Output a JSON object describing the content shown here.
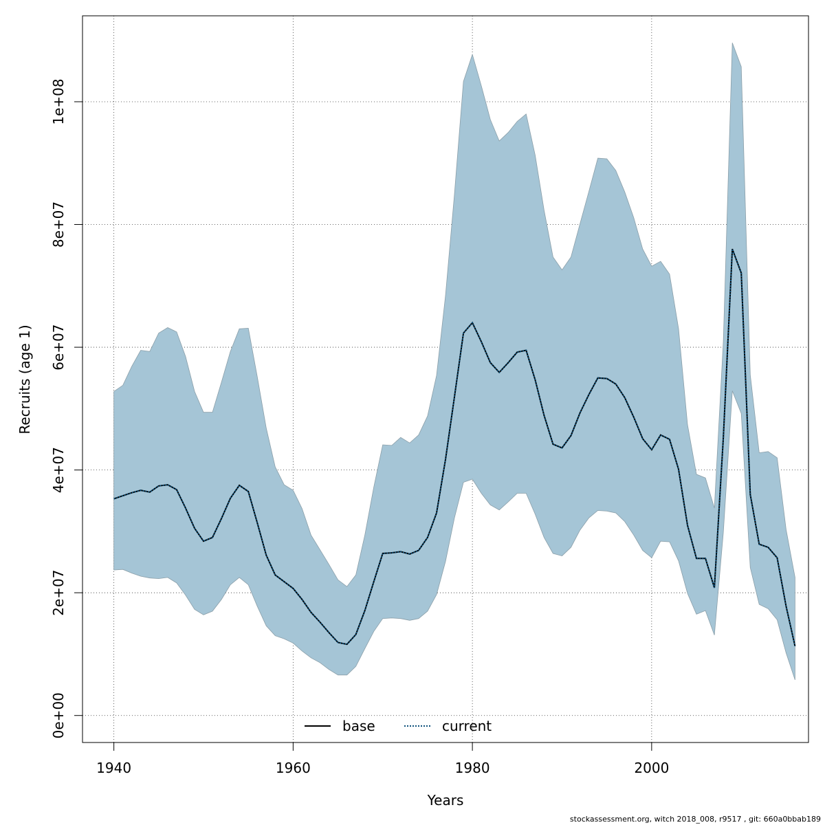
{
  "chart_data": {
    "type": "area",
    "title": "",
    "xlabel": "Years",
    "ylabel": "Recruits (age 1)",
    "xlim": [
      1936.5,
      2017.5
    ],
    "ylim": [
      -4400000,
      114000000
    ],
    "x_ticks": [
      1940,
      1960,
      1980,
      2000
    ],
    "x_tick_labels": [
      "1940",
      "1960",
      "1980",
      "2000"
    ],
    "y_ticks": [
      0,
      20000000,
      40000000,
      60000000,
      80000000,
      100000000
    ],
    "y_tick_labels": [
      "0e+00",
      "2e+07",
      "4e+07",
      "6e+07",
      "8e+07",
      "1e+08"
    ],
    "grid": true,
    "legend": {
      "placement": "bottom",
      "entries": [
        {
          "label": "base",
          "style": "solid",
          "color": "#000000"
        },
        {
          "label": "current",
          "style": "dotted",
          "color": "#0b4f7a"
        }
      ]
    },
    "colors": {
      "band_fill": "#a5c5d6",
      "band_edge": "#8a9ea8",
      "base_line": "#000000",
      "current_line": "#0b4f7a"
    },
    "years": [
      1940,
      1941,
      1942,
      1943,
      1944,
      1945,
      1946,
      1947,
      1948,
      1949,
      1950,
      1951,
      1952,
      1953,
      1954,
      1955,
      1956,
      1957,
      1958,
      1959,
      1960,
      1961,
      1962,
      1963,
      1964,
      1965,
      1966,
      1967,
      1968,
      1969,
      1970,
      1971,
      1972,
      1973,
      1974,
      1975,
      1976,
      1977,
      1978,
      1979,
      1980,
      1981,
      1982,
      1983,
      1984,
      1985,
      1986,
      1987,
      1988,
      1989,
      1990,
      1991,
      1992,
      1993,
      1994,
      1995,
      1996,
      1997,
      1998,
      1999,
      2000,
      2001,
      2002,
      2003,
      2004,
      2005,
      2006,
      2007,
      2008,
      2009,
      2010,
      2011,
      2012,
      2013,
      2014,
      2015,
      2016
    ],
    "series": [
      {
        "name": "base",
        "values": [
          35300000,
          35800000,
          36300000,
          36700000,
          36400000,
          37400000,
          37600000,
          36800000,
          33800000,
          30500000,
          28400000,
          29000000,
          32100000,
          35400000,
          37500000,
          36500000,
          31400000,
          26100000,
          22900000,
          21800000,
          20700000,
          18900000,
          16800000,
          15200000,
          13500000,
          11900000,
          11600000,
          13200000,
          17100000,
          21800000,
          26400000,
          26500000,
          26700000,
          26300000,
          26900000,
          29000000,
          33000000,
          41700000,
          51900000,
          62300000,
          64000000,
          60900000,
          57500000,
          55900000,
          57500000,
          59200000,
          59500000,
          54700000,
          48900000,
          44200000,
          43600000,
          45600000,
          49300000,
          52300000,
          55000000,
          54900000,
          54000000,
          51800000,
          48600000,
          45100000,
          43300000,
          45700000,
          45000000,
          40100000,
          31000000,
          25600000,
          25600000,
          20800000,
          45200000,
          76000000,
          72100000,
          36000000,
          27900000,
          27400000,
          25700000,
          17800000,
          11300000
        ]
      },
      {
        "name": "current",
        "values": [
          35300000,
          35800000,
          36300000,
          36700000,
          36400000,
          37400000,
          37600000,
          36800000,
          33800000,
          30500000,
          28400000,
          29000000,
          32100000,
          35400000,
          37500000,
          36500000,
          31400000,
          26100000,
          22900000,
          21800000,
          20700000,
          18900000,
          16800000,
          15200000,
          13500000,
          11900000,
          11600000,
          13200000,
          17100000,
          21800000,
          26400000,
          26500000,
          26700000,
          26300000,
          26900000,
          29000000,
          33000000,
          41700000,
          51900000,
          62300000,
          64000000,
          60900000,
          57500000,
          55900000,
          57500000,
          59200000,
          59500000,
          54700000,
          48900000,
          44200000,
          43600000,
          45600000,
          49300000,
          52300000,
          55000000,
          54900000,
          54000000,
          51800000,
          48600000,
          45100000,
          43300000,
          45700000,
          45000000,
          40100000,
          31000000,
          25600000,
          25600000,
          20800000,
          45200000,
          76000000,
          72100000,
          36000000,
          27900000,
          27400000,
          25700000,
          17800000,
          11300000
        ]
      }
    ],
    "band": {
      "upper": [
        52800000,
        53800000,
        56900000,
        59500000,
        59300000,
        62300000,
        63200000,
        62500000,
        58500000,
        52800000,
        49400000,
        49400000,
        54300000,
        59300000,
        63000000,
        63100000,
        55200000,
        46800000,
        40500000,
        37600000,
        36700000,
        33700000,
        29400000,
        27000000,
        24600000,
        22100000,
        21000000,
        22900000,
        29400000,
        37200000,
        44100000,
        44000000,
        45300000,
        44400000,
        45700000,
        48800000,
        55400000,
        68400000,
        84900000,
        103300000,
        107700000,
        102600000,
        97100000,
        93600000,
        95000000,
        96800000,
        98000000,
        91300000,
        82300000,
        74700000,
        72600000,
        74700000,
        80100000,
        85400000,
        90800000,
        90700000,
        88800000,
        85300000,
        81100000,
        76000000,
        73200000,
        74000000,
        71900000,
        63000000,
        47400000,
        39300000,
        38700000,
        33800000,
        60900000,
        109600000,
        105700000,
        55500000,
        42800000,
        43000000,
        42000000,
        30300000,
        22500000
      ],
      "lower": [
        23700000,
        23800000,
        23200000,
        22700000,
        22400000,
        22300000,
        22500000,
        21600000,
        19600000,
        17300000,
        16400000,
        17000000,
        18900000,
        21300000,
        22500000,
        21300000,
        17800000,
        14600000,
        13000000,
        12500000,
        11800000,
        10500000,
        9400000,
        8600000,
        7500000,
        6600000,
        6600000,
        8000000,
        10900000,
        13700000,
        15800000,
        15900000,
        15800000,
        15500000,
        15800000,
        17000000,
        19700000,
        25100000,
        32200000,
        38000000,
        38500000,
        36200000,
        34300000,
        33500000,
        34800000,
        36200000,
        36200000,
        32800000,
        29000000,
        26400000,
        26000000,
        27400000,
        30200000,
        32200000,
        33400000,
        33300000,
        33000000,
        31600000,
        29400000,
        26900000,
        25700000,
        28400000,
        28300000,
        25200000,
        19900000,
        16500000,
        17100000,
        13100000,
        29800000,
        52900000,
        49200000,
        24100000,
        18100000,
        17400000,
        15600000,
        10200000,
        5800000
      ]
    }
  },
  "footer": {
    "text": "stockassessment.org, witch  2018_008, r9517 , git: 660a0bbab189"
  }
}
